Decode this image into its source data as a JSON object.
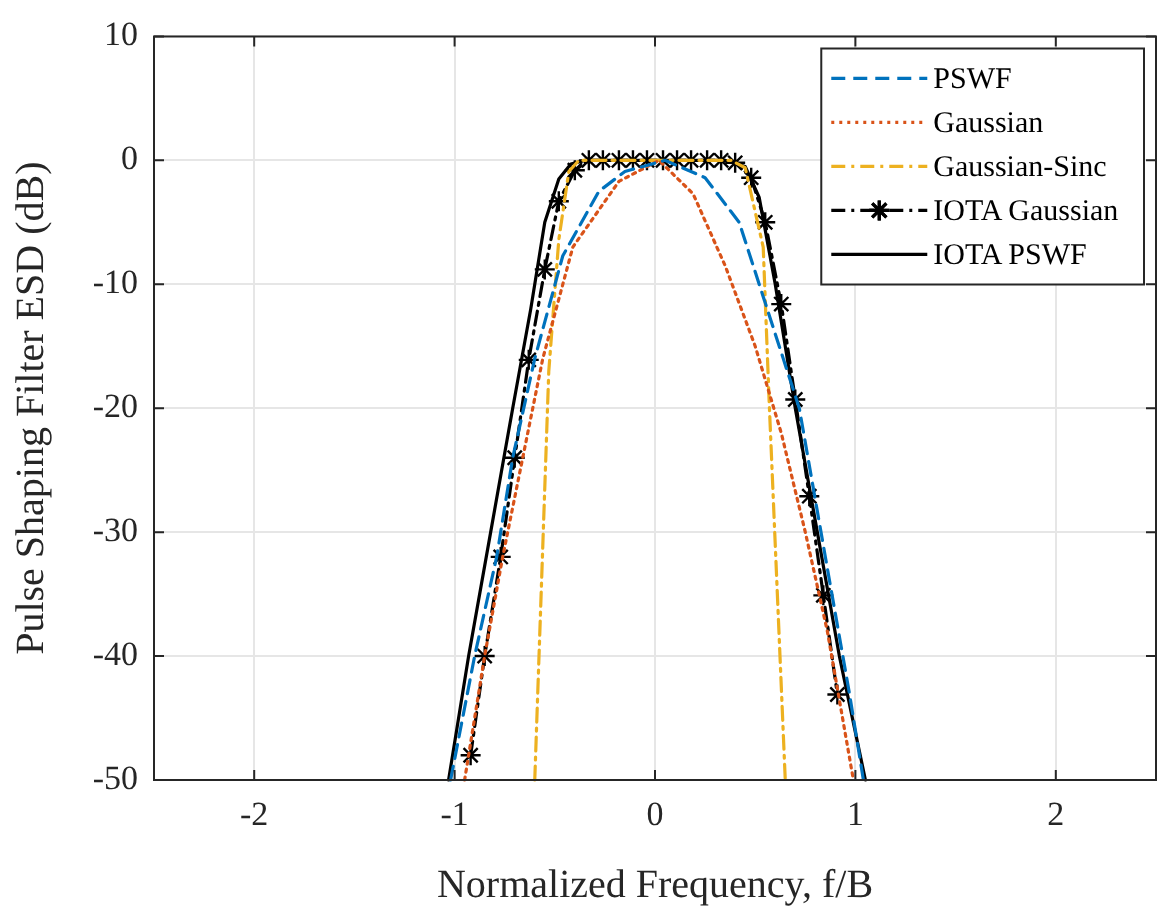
{
  "chart_data": {
    "type": "line",
    "xlabel": "Normalized Frequency, f/B",
    "ylabel": "Pulse Shaping Filter ESD (dB)",
    "xlim": [
      -2.5,
      2.5
    ],
    "xticks": [
      -2,
      -1,
      0,
      1,
      2
    ],
    "ylim": [
      -50,
      10
    ],
    "yticks": [
      -50,
      -40,
      -30,
      -20,
      -10,
      0,
      10
    ],
    "grid": true,
    "legend": "top right",
    "series": [
      {
        "name": "PSWF",
        "color": "#0072bd",
        "line_style": "dashed",
        "x": [
          -1.02,
          -0.9,
          -0.79,
          -0.71,
          -0.6,
          -0.46,
          -0.28,
          -0.15,
          0.05,
          0.25,
          0.42,
          0.54,
          0.64,
          0.72,
          0.85,
          0.97,
          1.04
        ],
        "values": [
          -50,
          -40,
          -32,
          -24,
          -16,
          -7.7,
          -2.5,
          -0.9,
          0,
          -1.4,
          -5,
          -11,
          -16,
          -20,
          -32,
          -43,
          -50
        ]
      },
      {
        "name": "Gaussian",
        "color": "#d95319",
        "line_style": "dotted",
        "x": [
          -0.95,
          -0.85,
          -0.76,
          -0.66,
          -0.56,
          -0.41,
          -0.18,
          0.02,
          0.19,
          0.35,
          0.5,
          0.63,
          0.75,
          0.86,
          0.99
        ],
        "values": [
          -50,
          -40,
          -32,
          -24,
          -16,
          -7,
          -1.7,
          0,
          -2.7,
          -8.5,
          -15,
          -22,
          -30,
          -38,
          -50
        ]
      },
      {
        "name": "Gaussian-Sinc",
        "color": "#edb120",
        "line_style": "dashdot",
        "x": [
          -0.6,
          -0.53,
          -0.48,
          -0.43,
          -0.38,
          0.38,
          0.45,
          0.54,
          0.57,
          0.65
        ],
        "values": [
          -50,
          -17,
          -6.4,
          -0.9,
          0,
          0,
          -0.6,
          -7,
          -19.6,
          -50
        ]
      },
      {
        "name": "IOTA Gaussian",
        "color": "#000000",
        "line_style": "dashdot",
        "marker": "cross",
        "x": [
          -0.92,
          -0.85,
          -0.77,
          -0.7,
          -0.63,
          -0.55,
          -0.48,
          -0.4,
          -0.33,
          -0.26,
          -0.18,
          -0.11,
          -0.04,
          0.04,
          0.11,
          0.18,
          0.26,
          0.33,
          0.4,
          0.48,
          0.55,
          0.63,
          0.7,
          0.77,
          0.84,
          0.91
        ],
        "values": [
          -48,
          -40,
          -32,
          -24,
          -16.1,
          -8.8,
          -3.3,
          -0.8,
          0,
          0,
          0,
          0,
          0,
          0,
          0,
          0,
          0,
          0,
          -0.2,
          -1.4,
          -5,
          -11.6,
          -19.3,
          -27.1,
          -35.1,
          -43.1
        ]
      },
      {
        "name": "IOTA PSWF",
        "color": "#000000",
        "line_style": "solid",
        "x": [
          -1.03,
          -0.93,
          -0.82,
          -0.71,
          -0.62,
          -0.55,
          -0.48,
          -0.42,
          -0.35,
          0.35,
          0.45,
          0.52,
          0.6,
          0.7,
          0.81,
          0.92,
          1.05
        ],
        "values": [
          -50,
          -40,
          -30,
          -20,
          -12,
          -5,
          -1.5,
          -0.3,
          0,
          0,
          -0.5,
          -3,
          -10,
          -20,
          -30,
          -40,
          -50
        ]
      }
    ]
  }
}
